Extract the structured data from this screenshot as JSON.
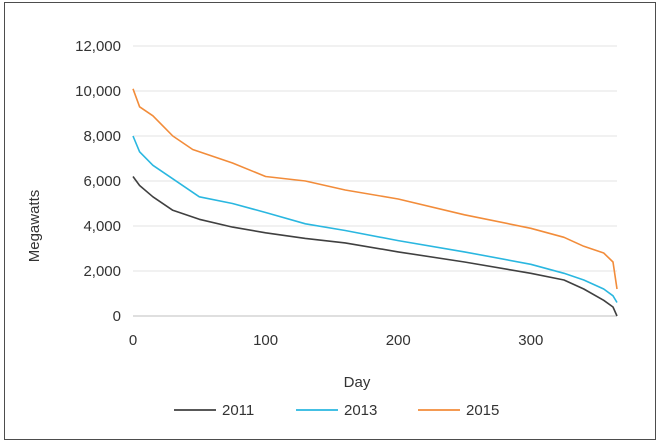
{
  "chart_data": {
    "type": "line",
    "title": "",
    "xlabel": "Day",
    "ylabel": "Megawatts",
    "xlim": [
      0,
      365
    ],
    "ylim": [
      0,
      12000
    ],
    "x_ticks": [
      0,
      100,
      200,
      300
    ],
    "x_tick_labels": [
      "0",
      "100",
      "200",
      "300"
    ],
    "y_ticks": [
      0,
      2000,
      4000,
      6000,
      8000,
      10000,
      12000
    ],
    "y_tick_labels": [
      "0",
      "2,000",
      "4,000",
      "6,000",
      "8,000",
      "10,000",
      "12,000"
    ],
    "grid": "horizontal",
    "legend_position": "bottom",
    "series": [
      {
        "name": "2011",
        "color": "#404040",
        "x": [
          0,
          5,
          15,
          30,
          50,
          75,
          100,
          130,
          160,
          200,
          250,
          300,
          325,
          340,
          355,
          362,
          365
        ],
        "y": [
          6200,
          5800,
          5300,
          4700,
          4300,
          3950,
          3700,
          3450,
          3250,
          2850,
          2400,
          1900,
          1600,
          1200,
          700,
          400,
          0
        ]
      },
      {
        "name": "2013",
        "color": "#2ab7e0",
        "x": [
          0,
          5,
          15,
          30,
          50,
          75,
          100,
          130,
          160,
          200,
          250,
          300,
          325,
          340,
          355,
          362,
          365
        ],
        "y": [
          8000,
          7300,
          6700,
          6100,
          5300,
          5000,
          4600,
          4100,
          3800,
          3350,
          2850,
          2300,
          1900,
          1600,
          1200,
          900,
          600
        ]
      },
      {
        "name": "2015",
        "color": "#f28c3a",
        "x": [
          0,
          5,
          15,
          30,
          45,
          75,
          100,
          130,
          160,
          200,
          250,
          300,
          325,
          340,
          355,
          362,
          365
        ],
        "y": [
          10100,
          9300,
          8900,
          8000,
          7400,
          6800,
          6200,
          6000,
          5600,
          5200,
          4500,
          3900,
          3500,
          3100,
          2800,
          2400,
          1200
        ]
      }
    ]
  }
}
